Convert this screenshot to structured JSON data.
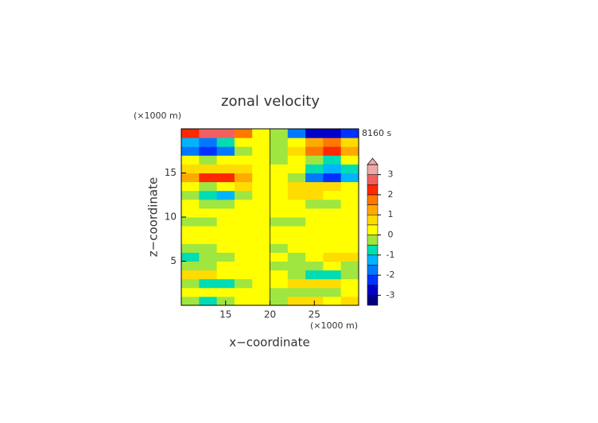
{
  "chart_data": {
    "type": "heatmap",
    "title": "zonal velocity",
    "x_unit": "(×1000 m)",
    "y_unit": "(×1000 m)",
    "time_label": "8160 s",
    "xlabel": "x−coordinate",
    "ylabel": "z−coordinate",
    "xlim": [
      10,
      30
    ],
    "ylim": [
      0,
      20
    ],
    "xticks": [
      15,
      20,
      25
    ],
    "yticks": [
      5,
      10,
      15
    ],
    "x": [
      11,
      13,
      15,
      17,
      19,
      21,
      23,
      25,
      27,
      29
    ],
    "y": [
      0.5,
      1.5,
      2.5,
      3.5,
      4.5,
      5.5,
      6.5,
      7.5,
      8.5,
      9.5,
      10.5,
      11.5,
      12.5,
      13.5,
      14.5,
      15.5,
      16.5,
      17.5,
      18.5,
      19.5
    ],
    "z": [
      [
        -0.3,
        -0.8,
        -0.3,
        0.3,
        0.3,
        -0.3,
        0.8,
        0.8,
        0.3,
        0.8
      ],
      [
        0.3,
        0.3,
        0.3,
        0.3,
        0.3,
        -0.3,
        -0.3,
        -0.3,
        -0.3,
        0.3
      ],
      [
        -0.3,
        -0.8,
        -0.8,
        -0.3,
        0.3,
        0.3,
        0.8,
        0.8,
        0.8,
        0.3
      ],
      [
        0.8,
        0.8,
        0.3,
        0.3,
        0.3,
        0.3,
        -0.3,
        -0.8,
        -0.8,
        -0.3
      ],
      [
        -0.3,
        -0.3,
        0.3,
        0.3,
        0.3,
        -0.3,
        -0.3,
        -0.3,
        0.3,
        -0.3
      ],
      [
        -0.8,
        -0.3,
        -0.3,
        0.3,
        0.3,
        0.3,
        -0.3,
        0.3,
        0.8,
        0.8
      ],
      [
        -0.3,
        -0.3,
        0.3,
        0.3,
        0.3,
        -0.3,
        0.3,
        0.3,
        0.3,
        0.3
      ],
      [
        0.3,
        0.3,
        0.3,
        0.3,
        0.3,
        0.3,
        0.3,
        0.3,
        0.3,
        0.3
      ],
      [
        0.3,
        0.3,
        0.3,
        0.3,
        0.3,
        0.3,
        0.3,
        0.3,
        0.3,
        0.3
      ],
      [
        -0.3,
        -0.3,
        0.3,
        0.3,
        0.3,
        -0.3,
        -0.3,
        0.3,
        0.3,
        0.3
      ],
      [
        0.3,
        0.3,
        0.3,
        0.3,
        0.3,
        0.3,
        0.3,
        0.3,
        0.3,
        0.3
      ],
      [
        0.3,
        -0.3,
        -0.3,
        0.3,
        0.3,
        0.3,
        0.3,
        -0.3,
        -0.3,
        0.3
      ],
      [
        -0.3,
        -0.8,
        -1.3,
        -0.3,
        0.3,
        0.3,
        0.8,
        0.8,
        0.3,
        0.3
      ],
      [
        0.3,
        -0.3,
        0.3,
        0.8,
        0.3,
        0.3,
        0.8,
        0.8,
        0.8,
        0.3
      ],
      [
        1.3,
        2.3,
        2.3,
        1.3,
        0.3,
        0.3,
        -0.3,
        -1.8,
        -2.3,
        -1.3
      ],
      [
        0.8,
        0.8,
        0.8,
        0.8,
        0.3,
        0.3,
        0.3,
        -0.8,
        -1.3,
        -0.8
      ],
      [
        0.3,
        -0.3,
        0.3,
        0.3,
        0.3,
        -0.3,
        0.3,
        -0.3,
        -0.8,
        0.3
      ],
      [
        -1.8,
        -2.3,
        -1.8,
        -0.3,
        0.3,
        -0.3,
        0.8,
        1.8,
        2.3,
        1.3
      ],
      [
        -1.3,
        -1.8,
        -0.8,
        0.3,
        0.3,
        -0.3,
        0.3,
        1.3,
        1.8,
        0.8
      ],
      [
        2.3,
        2.8,
        2.8,
        1.8,
        0.3,
        -0.3,
        -1.8,
        -2.8,
        -2.8,
        -2.3
      ]
    ],
    "levels": [
      -3.5,
      -3,
      -2.5,
      -2,
      -1.5,
      -1,
      -0.5,
      0,
      0.5,
      1,
      1.5,
      2,
      2.5,
      3,
      3.5
    ],
    "colors": [
      "#000080",
      "#0000c8",
      "#0032ff",
      "#0078ff",
      "#00b4ff",
      "#00dcb4",
      "#a0e640",
      "#ffff00",
      "#ffdc00",
      "#ffaa00",
      "#ff7800",
      "#ff2800",
      "#f06060",
      "#f0a8a8"
    ],
    "colorbar_ticks": [
      -3,
      -2,
      -1,
      0,
      1,
      2,
      3
    ]
  }
}
